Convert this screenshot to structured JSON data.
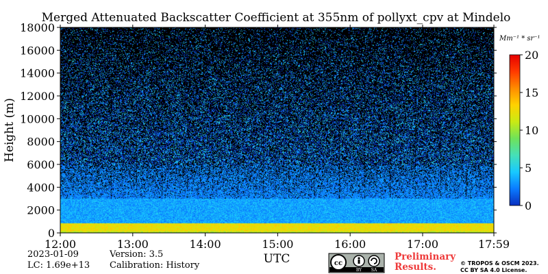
{
  "chart_data": {
    "type": "heatmap",
    "title": "Merged Attenuated Backscatter Coefficient at 355nm of pollyxt_cpv at Mindelo",
    "xlabel": "UTC",
    "ylabel": "Height (m)",
    "x_ticks": [
      "12:00",
      "13:00",
      "14:00",
      "15:00",
      "16:00",
      "17:00",
      "17:59"
    ],
    "x_range": [
      "12:00",
      "17:59"
    ],
    "y_ticks": [
      0,
      2000,
      4000,
      6000,
      8000,
      10000,
      12000,
      14000,
      16000,
      18000
    ],
    "ylim": [
      0,
      18000
    ],
    "colorbar": {
      "label": "Mm⁻¹ * sr⁻¹",
      "ticks": [
        0,
        5,
        10,
        15,
        20
      ],
      "range": [
        0,
        20
      ],
      "colormap": [
        "#0a2fbf",
        "#0a7bff",
        "#18c9ff",
        "#45e0b8",
        "#6fe25a",
        "#c9ea14",
        "#ffd200",
        "#ff8c00",
        "#ff3a00",
        "#e60000"
      ]
    },
    "profile_summary": [
      {
        "height_range_m": [
          0,
          150
        ],
        "approx_value": 10
      },
      {
        "height_range_m": [
          150,
          900
        ],
        "approx_value": 12
      },
      {
        "height_range_m": [
          900,
          3000
        ],
        "approx_value": 3
      },
      {
        "height_range_m": [
          3000,
          6000
        ],
        "approx_value": 2
      },
      {
        "height_range_m": [
          6000,
          18000
        ],
        "approx_value": 0.5
      }
    ]
  },
  "footer": {
    "date": "2023-01-09",
    "lc": "LC: 1.69e+13",
    "version": "Version: 3.5",
    "calibration": "Calibration: History",
    "preliminary": "Preliminary Results.",
    "copyright_line1": "© TROPOS & OSCM 2023.",
    "copyright_line2": "CC BY SA 4.0 License.",
    "license_badge": "cc-by-sa-badge"
  }
}
